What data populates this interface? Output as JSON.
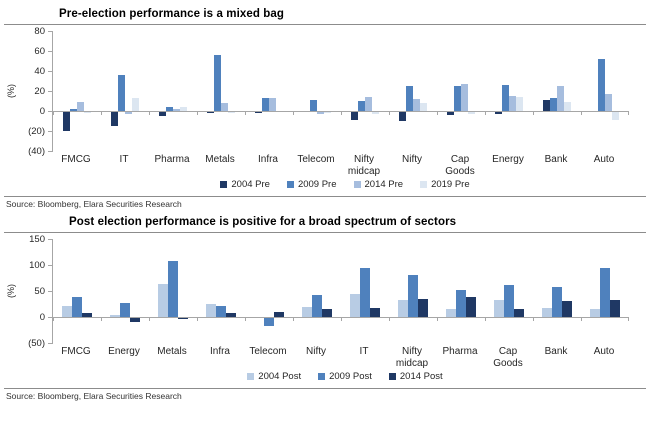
{
  "chart_data": [
    {
      "type": "bar",
      "title": "Pre-election performance is a mixed bag",
      "ylabel": "(%)",
      "ylim": [
        -40,
        80
      ],
      "grid": false,
      "legend_position": "bottom",
      "yticks": [
        {
          "value": 80,
          "label": "80"
        },
        {
          "value": 60,
          "label": "60"
        },
        {
          "value": 40,
          "label": "40"
        },
        {
          "value": 20,
          "label": "20"
        },
        {
          "value": 0,
          "label": "0"
        },
        {
          "value": -20,
          "label": "(20)"
        },
        {
          "value": -40,
          "label": "(40)"
        }
      ],
      "categories": [
        "FMCG",
        "IT",
        "Pharma",
        "Metals",
        "Infra",
        "Telecom",
        "Nifty midcap",
        "Nifty",
        "Cap Goods",
        "Energy",
        "Bank",
        "Auto"
      ],
      "series": [
        {
          "name": "2004 Pre",
          "color": "#1F3864",
          "values": [
            -19,
            -14,
            -4,
            -1,
            -1,
            0,
            -8,
            -9,
            -3,
            -2,
            11,
            0
          ]
        },
        {
          "name": "2009 Pre",
          "color": "#4F81BD",
          "values": [
            2,
            36,
            4,
            56,
            13,
            11,
            10,
            25,
            25,
            26,
            13,
            52
          ]
        },
        {
          "name": "2014 Pre",
          "color": "#A6BDDE",
          "values": [
            9,
            -2,
            2,
            8,
            13,
            -2,
            14,
            12,
            27,
            15,
            25,
            17
          ]
        },
        {
          "name": "2019 Pre",
          "color": "#DCE6F1",
          "values": [
            -1,
            13,
            4,
            -1,
            0,
            -1,
            -2,
            8,
            -2,
            14,
            9,
            -8
          ]
        }
      ],
      "source": "Source: Bloomberg, Elara Securities Research"
    },
    {
      "type": "bar",
      "title": "Post election performance is positive for a broad spectrum of sectors",
      "ylabel": "(%)",
      "ylim": [
        -50,
        150
      ],
      "grid": false,
      "legend_position": "bottom",
      "yticks": [
        {
          "value": 150,
          "label": "150"
        },
        {
          "value": 100,
          "label": "100"
        },
        {
          "value": 50,
          "label": "50"
        },
        {
          "value": 0,
          "label": "0"
        },
        {
          "value": -50,
          "label": "(50)"
        }
      ],
      "categories": [
        "FMCG",
        "Energy",
        "Metals",
        "Infra",
        "Telecom",
        "Nifty",
        "IT",
        "Nifty midcap",
        "Pharma",
        "Cap Goods",
        "Bank",
        "Auto"
      ],
      "series": [
        {
          "name": "2004 Post",
          "color": "#B8CCE4",
          "values": [
            21,
            3,
            63,
            25,
            0,
            20,
            45,
            33,
            15,
            32,
            18,
            15
          ]
        },
        {
          "name": "2009 Post",
          "color": "#4F81BD",
          "values": [
            38,
            27,
            108,
            22,
            -15,
            42,
            95,
            80,
            52,
            62,
            58,
            95
          ]
        },
        {
          "name": "2014 Post",
          "color": "#1F3864",
          "values": [
            8,
            -8,
            -2,
            8,
            10,
            15,
            18,
            35,
            38,
            15,
            30,
            32
          ]
        }
      ],
      "source": "Source: Bloomberg, Elara Securities Research"
    }
  ]
}
